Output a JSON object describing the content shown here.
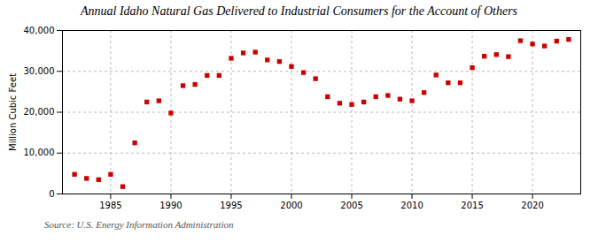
{
  "chart_data": {
    "type": "scatter",
    "title": "Annual Idaho Natural Gas Delivered to Industrial Consumers for the Account of Others",
    "ylabel": "Million Cubic Feet",
    "annotations": [
      "Source: U.S. Energy Information Administration"
    ],
    "x": [
      1982,
      1983,
      1984,
      1985,
      1986,
      1987,
      1988,
      1989,
      1990,
      1991,
      1992,
      1993,
      1994,
      1995,
      1996,
      1997,
      1998,
      1999,
      2000,
      2001,
      2002,
      2003,
      2004,
      2005,
      2006,
      2007,
      2008,
      2009,
      2010,
      2011,
      2012,
      2013,
      2014,
      2015,
      2016,
      2017,
      2018,
      2019,
      2020,
      2021,
      2022,
      2023
    ],
    "values": [
      4800,
      3800,
      3500,
      4800,
      1800,
      12500,
      22500,
      22800,
      19800,
      26500,
      26800,
      29000,
      29000,
      33200,
      34500,
      34700,
      32800,
      32400,
      31200,
      29700,
      28200,
      23800,
      22200,
      21900,
      22500,
      23800,
      24100,
      23200,
      22800,
      24800,
      29100,
      27200,
      27200,
      30900,
      33700,
      34100,
      33600,
      37500,
      36700,
      36200,
      37400,
      37800
    ],
    "color": "#cc0000",
    "marker": "square",
    "xlim": [
      1981,
      2024
    ],
    "xticks": [
      1985,
      1990,
      1995,
      2000,
      2005,
      2010,
      2015,
      2020
    ],
    "ylim": [
      0,
      40000
    ],
    "yticks": [
      0,
      {
        "value": 10000,
        "label": "10,000"
      },
      {
        "value": 20000,
        "label": "20,000"
      },
      {
        "value": 30000,
        "label": "30,000"
      },
      {
        "value": 40000,
        "label": "40,000"
      }
    ],
    "grid": true
  }
}
